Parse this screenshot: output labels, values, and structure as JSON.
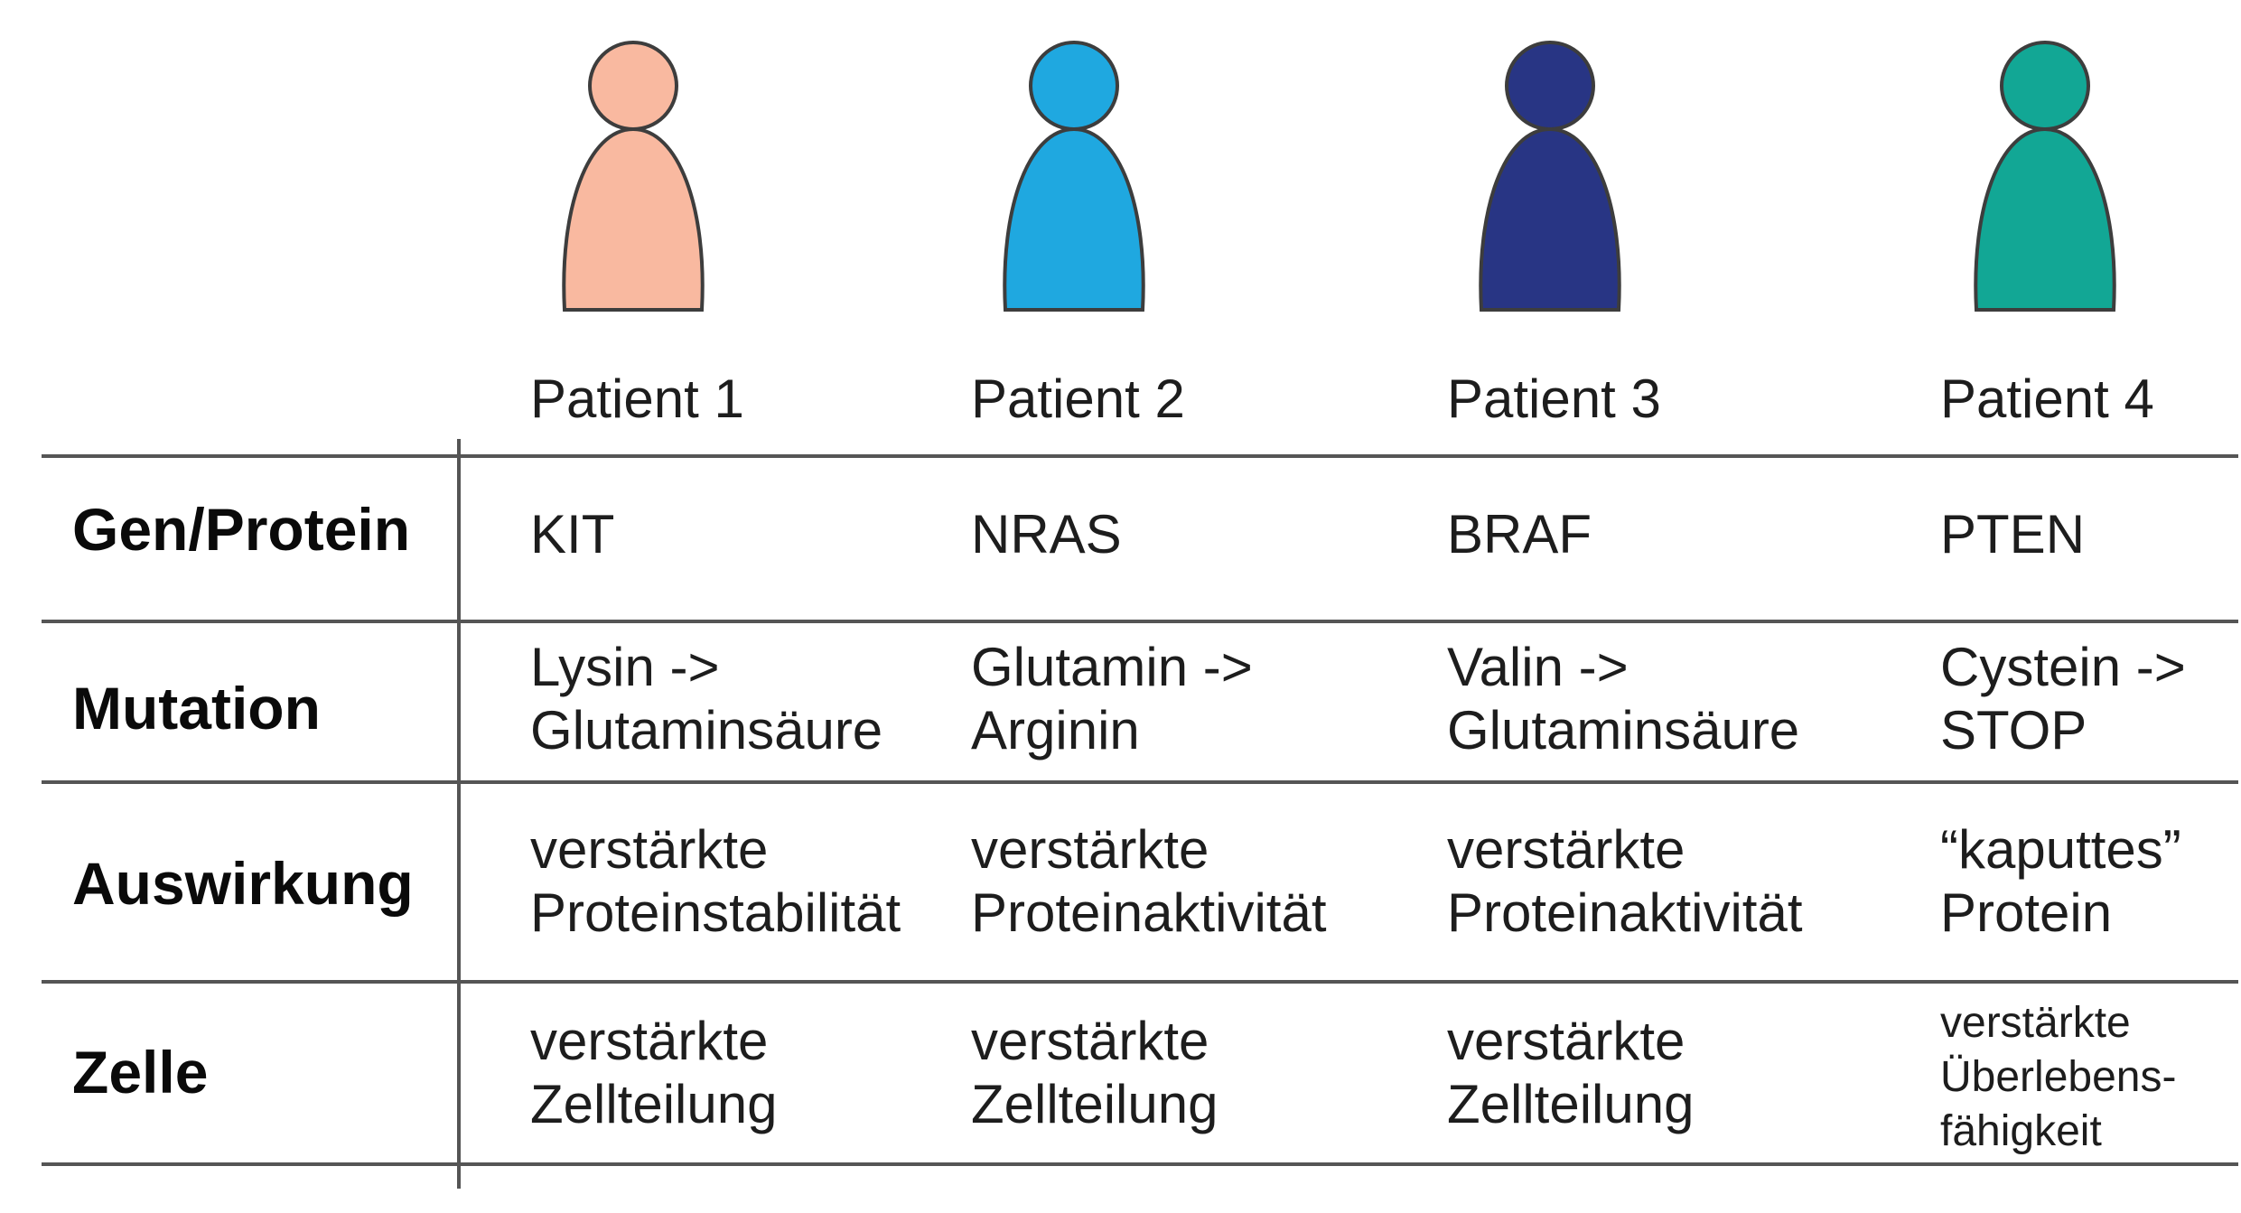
{
  "patients": [
    {
      "label": "Patient 1",
      "color": "#f9b9a0"
    },
    {
      "label": "Patient 2",
      "color": "#1fa8e0"
    },
    {
      "label": "Patient 3",
      "color": "#283584"
    },
    {
      "label": "Patient 4",
      "color": "#12a795"
    }
  ],
  "figure_outline": "#3d3d3d",
  "rows": [
    {
      "label": "Gen/Protein",
      "cells": [
        [
          "KIT"
        ],
        [
          "NRAS"
        ],
        [
          "BRAF"
        ],
        [
          "PTEN"
        ]
      ]
    },
    {
      "label": "Mutation",
      "cells": [
        [
          "Lysin ->",
          "Glutaminsäure"
        ],
        [
          "Glutamin ->",
          "Arginin"
        ],
        [
          "Valin ->",
          "Glutaminsäure"
        ],
        [
          "Cystein ->",
          "STOP"
        ]
      ]
    },
    {
      "label": "Auswirkung",
      "cells": [
        [
          "verstärkte",
          "Proteinstabilität"
        ],
        [
          "verstärkte",
          "Proteinaktivität"
        ],
        [
          "verstärkte",
          "Proteinaktivität"
        ],
        [
          "“kaputtes”",
          "Protein"
        ]
      ]
    },
    {
      "label": "Zelle",
      "cells": [
        [
          "verstärkte",
          "Zellteilung"
        ],
        [
          "verstärkte",
          "Zellteilung"
        ],
        [
          "verstärkte",
          "Zellteilung"
        ],
        [
          "verstärkte",
          "Überlebens-",
          "fähigkeit"
        ]
      ]
    }
  ]
}
